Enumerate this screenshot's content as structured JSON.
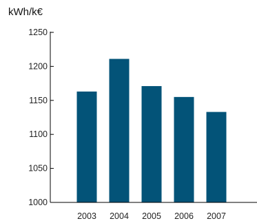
{
  "chart_data": {
    "type": "bar",
    "unit_label": "kWh/k€",
    "categories": [
      "2003",
      "2004",
      "2005",
      "2006",
      "2007"
    ],
    "values": [
      1163,
      1211,
      1171,
      1155,
      1133
    ],
    "ylim": [
      1000,
      1250
    ],
    "yticks": [
      1000,
      1050,
      1100,
      1150,
      1200,
      1250
    ],
    "bar_color": "#035378",
    "axis_color": "#000000",
    "grid": false
  }
}
